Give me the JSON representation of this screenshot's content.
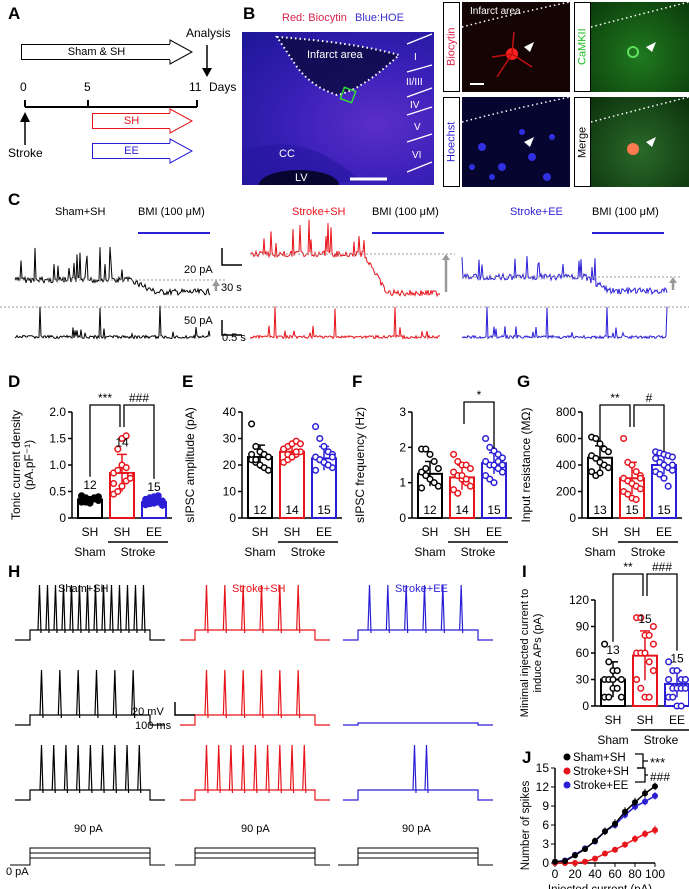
{
  "panel_labels": {
    "A": "A",
    "B": "B",
    "C": "C",
    "D": "D",
    "E": "E",
    "F": "F",
    "G": "G",
    "H": "H",
    "I": "I",
    "J": "J"
  },
  "colors": {
    "sham": "#000000",
    "stroke_sh": "#e8141b",
    "stroke_ee": "#2b1fd6",
    "bmi_bar": "#2b1fd6",
    "baseline": "#9a9a9a"
  },
  "panelA": {
    "sham_arrow": "Sham & SH",
    "analysis": "Analysis",
    "ticks": [
      "0",
      "5",
      "11"
    ],
    "days": "Days",
    "stroke": "Stroke",
    "sh": "SH",
    "ee": "EE"
  },
  "panelB": {
    "legend_red": "Red: Biocytin",
    "legend_blue": "Blue:HOE",
    "infarct": "Infarct area",
    "layers": [
      "I",
      "II/III",
      "IV",
      "V",
      "VI"
    ],
    "cc": "CC",
    "lv": "LV",
    "channels": [
      "Biocytin",
      "CaMKII",
      "Hoechst",
      "Merge"
    ],
    "infarct_small": "Infarct area"
  },
  "panelC": {
    "groups": [
      "Sham+SH",
      "Stroke+SH",
      "Stroke+EE"
    ],
    "bmi": "BMI (100 μM)",
    "scale_top": {
      "y": "20 pA",
      "x": "30 s"
    },
    "scale_bottom": {
      "y": "50 pA",
      "x": "0.5 s"
    }
  },
  "panelH": {
    "groups": [
      "Sham+SH",
      "Stroke+SH",
      "Stroke+EE"
    ],
    "scale": {
      "y": "20 mV",
      "x": "100 ms"
    },
    "stim": "90 pA",
    "zero": "0 pA"
  },
  "chart_data": [
    {
      "id": "D",
      "type": "bar",
      "ylabel": "Tonic current density (pA.pF⁻¹)",
      "ylim": [
        0,
        2
      ],
      "yticks": [
        "0",
        "0.5",
        "1.0",
        "1.5",
        "2.0"
      ],
      "categories": [
        "SH",
        "SH",
        "EE"
      ],
      "group_labels": [
        "Sham",
        "Stroke"
      ],
      "values": [
        0.35,
        0.85,
        0.3
      ],
      "errors": [
        0.05,
        0.35,
        0.06
      ],
      "n": [
        "12",
        "14",
        "15"
      ],
      "n_position": "above",
      "points": [
        [
          0.3,
          0.32,
          0.35,
          0.38,
          0.4,
          0.42,
          0.3,
          0.28,
          0.36,
          0.33,
          0.4,
          0.38
        ],
        [
          0.45,
          0.5,
          0.6,
          0.7,
          0.8,
          0.85,
          0.9,
          1.0,
          0.95,
          0.75,
          0.65,
          1.3,
          1.5,
          1.55
        ],
        [
          0.25,
          0.27,
          0.28,
          0.3,
          0.32,
          0.35,
          0.38,
          0.4,
          0.42,
          0.26,
          0.29,
          0.31,
          0.33,
          0.36,
          0.24
        ]
      ],
      "significance": [
        {
          "pair": [
            0,
            1
          ],
          "label": "***"
        },
        {
          "pair": [
            1,
            2
          ],
          "label": "###"
        }
      ]
    },
    {
      "id": "E",
      "type": "bar",
      "ylabel": "sIPSC amplitude (pA)",
      "ylim": [
        0,
        40
      ],
      "yticks": [
        "0",
        "10",
        "20",
        "30",
        "40"
      ],
      "categories": [
        "SH",
        "SH",
        "EE"
      ],
      "group_labels": [
        "Sham",
        "Stroke"
      ],
      "values": [
        23,
        25,
        22.5
      ],
      "errors": [
        4.5,
        3,
        4.5
      ],
      "n": [
        "12",
        "14",
        "15"
      ],
      "n_position": "inside",
      "points": [
        [
          35.5,
          27,
          25,
          24,
          23,
          22,
          21,
          20,
          19,
          18,
          24,
          22
        ],
        [
          21,
          22,
          23,
          24,
          25,
          26,
          27,
          28,
          29,
          28,
          26,
          24,
          23,
          25
        ],
        [
          34.5,
          30,
          27,
          25,
          24,
          23,
          22,
          21,
          20,
          19,
          18,
          22,
          21,
          20,
          23
        ]
      ],
      "significance": []
    },
    {
      "id": "F",
      "type": "bar",
      "ylabel": "sIPSC frequency (Hz)",
      "ylim": [
        0,
        3
      ],
      "yticks": [
        "0",
        "1",
        "2",
        "3"
      ],
      "categories": [
        "SH",
        "SH",
        "EE"
      ],
      "group_labels": [
        "Sham",
        "Stroke"
      ],
      "values": [
        1.25,
        1.15,
        1.55
      ],
      "errors": [
        0.35,
        0.35,
        0.3
      ],
      "n": [
        "12",
        "14",
        "15"
      ],
      "n_position": "inside",
      "points": [
        [
          1.95,
          1.95,
          1.8,
          1.6,
          1.4,
          1.3,
          1.2,
          1.1,
          1.0,
          0.9,
          0.85,
          1.4
        ],
        [
          1.8,
          1.6,
          1.5,
          1.5,
          1.4,
          1.3,
          1.2,
          1.1,
          1.0,
          0.9,
          0.8,
          0.7,
          1.2,
          1.1
        ],
        [
          2.25,
          2.0,
          1.9,
          1.8,
          1.7,
          1.6,
          1.5,
          1.5,
          1.4,
          1.3,
          1.2,
          1.1,
          1.0,
          1.6,
          1.5
        ]
      ],
      "significance": [
        {
          "pair": [
            1,
            2
          ],
          "label": "*"
        }
      ]
    },
    {
      "id": "G",
      "type": "bar",
      "ylabel": "Input resistance (MΩ)",
      "ylim": [
        0,
        800
      ],
      "yticks": [
        "0",
        "200",
        "400",
        "600",
        "800"
      ],
      "categories": [
        "SH",
        "SH",
        "EE"
      ],
      "group_labels": [
        "Sham",
        "Stroke"
      ],
      "values": [
        455,
        300,
        400
      ],
      "errors": [
        90,
        120,
        70
      ],
      "n": [
        "13",
        "15",
        "15"
      ],
      "n_position": "inside",
      "points": [
        [
          610,
          600,
          560,
          520,
          500,
          470,
          450,
          420,
          400,
          380,
          350,
          320,
          340
        ],
        [
          600,
          420,
          400,
          350,
          320,
          300,
          280,
          260,
          240,
          220,
          200,
          180,
          150,
          140,
          300
        ],
        [
          500,
          490,
          480,
          470,
          460,
          450,
          420,
          400,
          380,
          360,
          350,
          330,
          300,
          240,
          400
        ]
      ],
      "significance": [
        {
          "pair": [
            0,
            1
          ],
          "label": "**"
        },
        {
          "pair": [
            1,
            2
          ],
          "label": "#"
        }
      ]
    },
    {
      "id": "I",
      "type": "bar",
      "ylabel": "Minimal injected current to induce APs (pA)",
      "ylim": [
        0,
        120
      ],
      "yticks": [
        "0",
        "30",
        "60",
        "90",
        "120"
      ],
      "categories": [
        "SH",
        "SH",
        "EE"
      ],
      "group_labels": [
        "Sham",
        "Stroke"
      ],
      "values": [
        30,
        57,
        25
      ],
      "errors": [
        20,
        28,
        15
      ],
      "n": [
        "13",
        "15",
        "15"
      ],
      "n_position": "above",
      "points": [
        [
          70,
          50,
          40,
          40,
          30,
          30,
          30,
          20,
          20,
          10,
          10,
          10,
          30
        ],
        [
          100,
          100,
          80,
          80,
          70,
          60,
          60,
          60,
          50,
          40,
          30,
          20,
          10,
          10,
          90
        ],
        [
          50,
          40,
          40,
          30,
          30,
          30,
          20,
          20,
          20,
          20,
          10,
          10,
          0,
          0,
          30
        ]
      ],
      "significance": [
        {
          "pair": [
            0,
            1
          ],
          "label": "**"
        },
        {
          "pair": [
            1,
            2
          ],
          "label": "###"
        }
      ]
    },
    {
      "id": "J",
      "type": "line",
      "xlabel": "Injected current (pA)",
      "ylabel": "Number of spikes",
      "xlim": [
        0,
        100
      ],
      "ylim": [
        0,
        15
      ],
      "xticks": [
        "0",
        "20",
        "40",
        "60",
        "80",
        "100"
      ],
      "yticks": [
        "0",
        "3",
        "6",
        "9",
        "12",
        "15"
      ],
      "x": [
        0,
        10,
        20,
        30,
        40,
        50,
        60,
        70,
        80,
        90,
        100
      ],
      "series": [
        {
          "name": "Sham+SH",
          "values": [
            0.2,
            0.3,
            1.2,
            2.2,
            3.5,
            5.0,
            6.2,
            8.1,
            9.6,
            11.0,
            12.1
          ],
          "errors": [
            0.1,
            0.2,
            0.3,
            0.4,
            0.5,
            0.6,
            0.7,
            0.7,
            0.7,
            0.7,
            0.6
          ]
        },
        {
          "name": "Stroke+SH",
          "values": [
            0,
            0,
            0,
            0.2,
            0.7,
            1.5,
            2.1,
            2.9,
            3.8,
            4.6,
            5.2
          ],
          "errors": [
            0,
            0,
            0,
            0.1,
            0.2,
            0.3,
            0.4,
            0.5,
            0.6,
            0.6,
            0.7
          ]
        },
        {
          "name": "Stroke+EE",
          "values": [
            0.2,
            0.4,
            1.3,
            2.3,
            3.4,
            5.0,
            6.0,
            7.6,
            8.9,
            9.7,
            10.6
          ],
          "errors": [
            0.1,
            0.2,
            0.3,
            0.4,
            0.5,
            0.5,
            0.6,
            0.6,
            0.6,
            0.6,
            0.6
          ]
        }
      ],
      "significance": [
        {
          "label": "***"
        },
        {
          "label": "###"
        }
      ],
      "legend": "top-left"
    }
  ]
}
